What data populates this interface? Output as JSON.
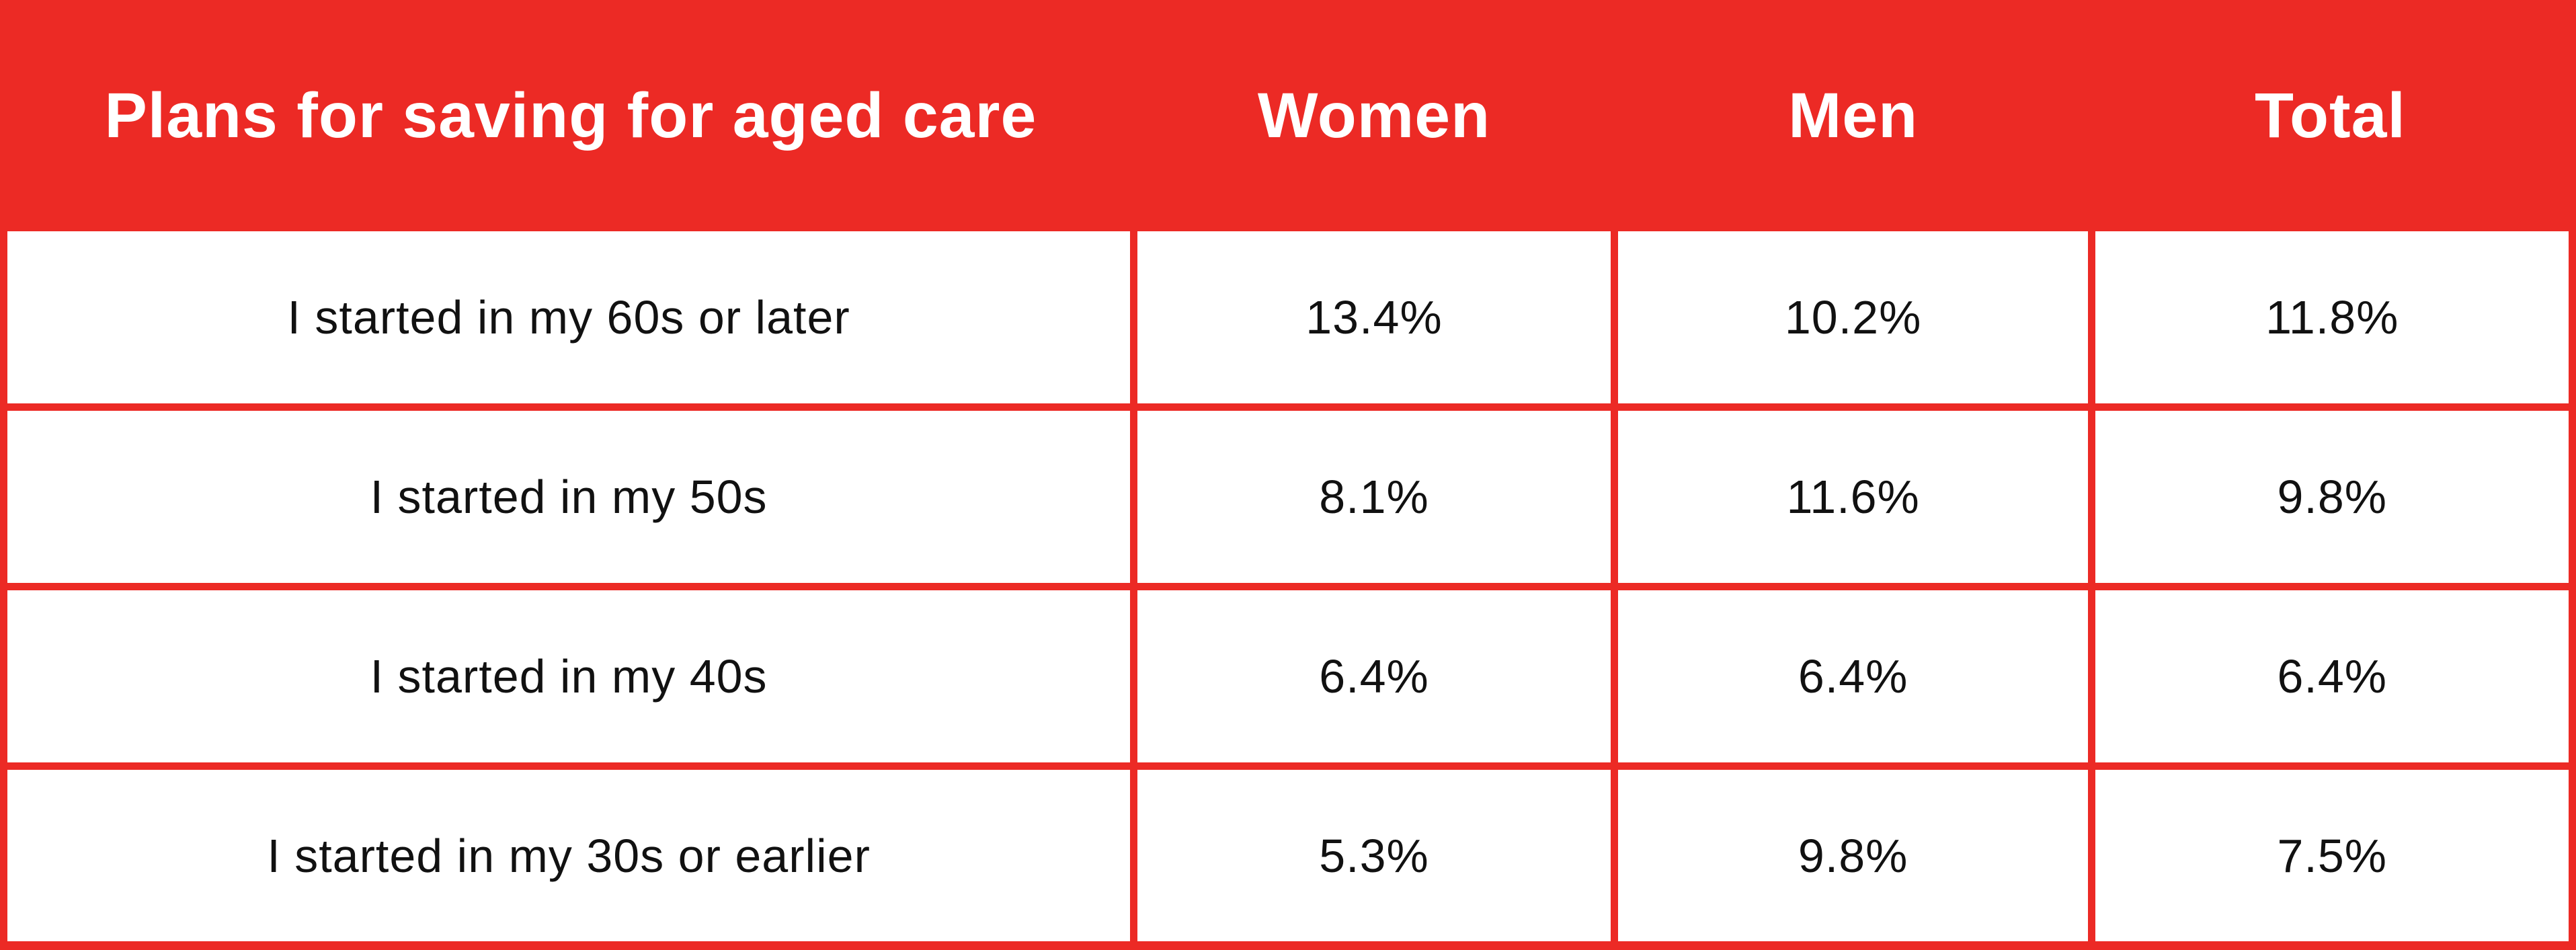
{
  "colors": {
    "brand_red": "#EC2A25",
    "header_text": "#FFFFFF",
    "cell_text": "#111111",
    "row_background": "#FFFFFF"
  },
  "table": {
    "title_header": "Plans for saving for aged care",
    "column_headers": {
      "women": "Women",
      "men": "Men",
      "total": "Total"
    },
    "rows": [
      {
        "label": "I started in my 60s or later",
        "women": "13.4%",
        "men": "10.2%",
        "total": "11.8%"
      },
      {
        "label": "I started in my 50s",
        "women": "8.1%",
        "men": "11.6%",
        "total": "9.8%"
      },
      {
        "label": "I started in my 40s",
        "women": "6.4%",
        "men": "6.4%",
        "total": "6.4%"
      },
      {
        "label": "I started in my 30s or earlier",
        "women": "5.3%",
        "men": "9.8%",
        "total": "7.5%"
      }
    ]
  },
  "chart_data": {
    "type": "table",
    "title": "Plans for saving for aged care",
    "columns": [
      "Plans for saving for aged care",
      "Women",
      "Men",
      "Total"
    ],
    "units": "%",
    "categories": [
      "I started in my 60s or later",
      "I started in my 50s",
      "I started in my 40s",
      "I started in my 30s or earlier"
    ],
    "series": [
      {
        "name": "Women",
        "values": [
          13.4,
          8.1,
          6.4,
          5.3
        ]
      },
      {
        "name": "Men",
        "values": [
          10.2,
          11.6,
          6.4,
          9.8
        ]
      },
      {
        "name": "Total",
        "values": [
          11.8,
          9.8,
          6.4,
          7.5
        ]
      }
    ],
    "layout_hints": {
      "header_background": "#EC2A25",
      "grid": "red table borders",
      "legend_position": "none"
    }
  }
}
